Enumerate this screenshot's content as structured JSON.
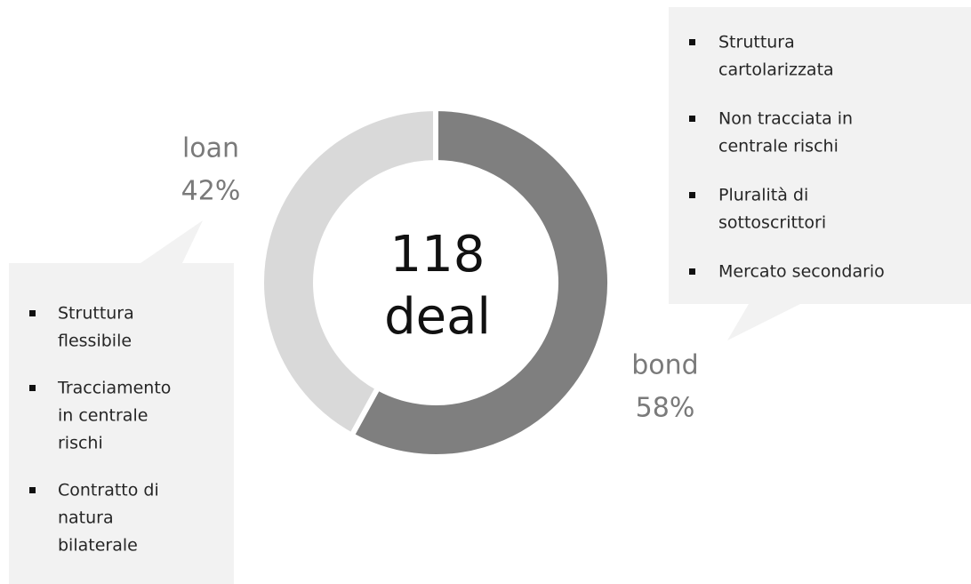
{
  "chart_data": {
    "type": "pie",
    "donut": true,
    "categories": [
      "bond",
      "loan"
    ],
    "values": [
      58,
      42
    ],
    "value_labels": [
      "58%",
      "42%"
    ],
    "colors": [
      "#7f7f7f",
      "#d9d9d9"
    ],
    "center_text": [
      "118",
      "deal"
    ],
    "annotations": [
      {
        "items": [
          [
            "Struttura",
            "cartolarizzata"
          ],
          [
            "Non tracciata in",
            "centrale rischi"
          ],
          [
            "Pluralità di",
            "sottoscrittori"
          ],
          [
            "Mercato secondario"
          ]
        ]
      },
      {
        "items": [
          [
            "Struttura",
            "flessibile"
          ],
          [
            "Tracciamento",
            "in centrale",
            "rischi"
          ],
          [
            "Contratto di",
            "natura",
            "bilaterale"
          ]
        ]
      }
    ]
  }
}
